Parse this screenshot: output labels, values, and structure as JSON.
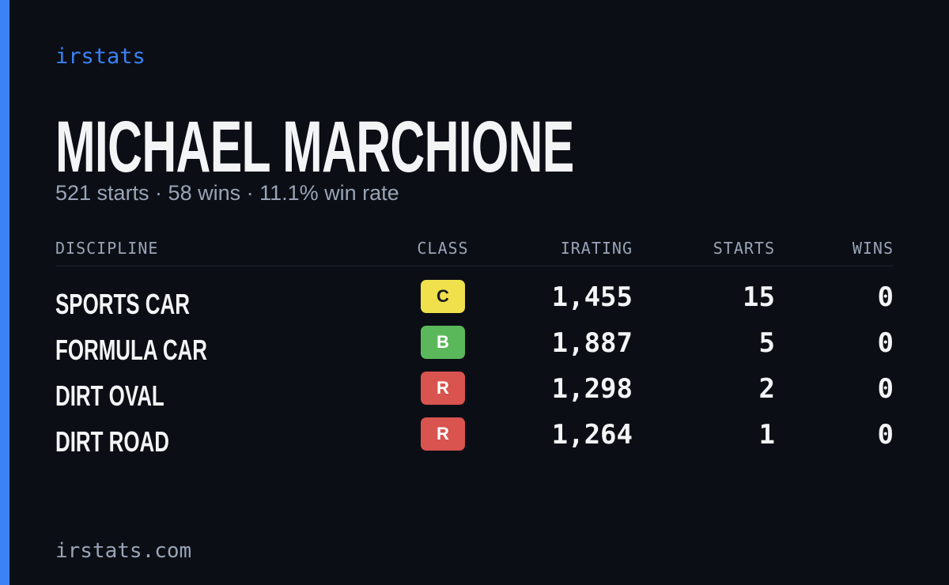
{
  "brand": "irstats",
  "name": "MICHAEL MARCHIONE",
  "summary": "521 starts · 58 wins · 11.1% win rate",
  "table": {
    "headers": [
      "DISCIPLINE",
      "CLASS",
      "IRATING",
      "STARTS",
      "WINS"
    ],
    "rows": [
      {
        "discipline": "SPORTS CAR",
        "class": "C",
        "class_color": "#efe04c",
        "class_text_color": "#1a1a1a",
        "irating": "1,455",
        "starts": "15",
        "wins": "0"
      },
      {
        "discipline": "FORMULA CAR",
        "class": "B",
        "class_color": "#5bb85a",
        "class_text_color": "#ffffff",
        "irating": "1,887",
        "starts": "5",
        "wins": "0"
      },
      {
        "discipline": "DIRT OVAL",
        "class": "R",
        "class_color": "#d9534f",
        "class_text_color": "#ffffff",
        "irating": "1,298",
        "starts": "2",
        "wins": "0"
      },
      {
        "discipline": "DIRT ROAD",
        "class": "R",
        "class_color": "#d9534f",
        "class_text_color": "#ffffff",
        "irating": "1,264",
        "starts": "1",
        "wins": "0"
      }
    ]
  },
  "footer": "irstats.com"
}
